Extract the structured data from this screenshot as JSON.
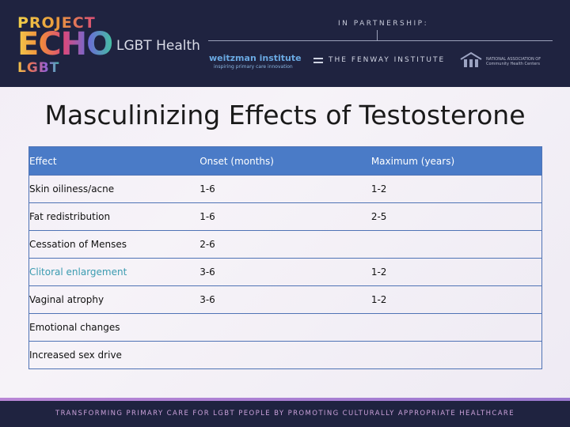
{
  "header": {
    "logo_project": "PROJECT",
    "logo_echo": "ECHO",
    "logo_lgbt": "LGBT",
    "logo_health": "LGBT Health",
    "partnership": "IN PARTNERSHIP:",
    "weitzman": "weitzman institute",
    "weitzman_tagline": "inspiring primary care innovation",
    "fenway": "THE FENWAY INSTITUTE",
    "nachc": "NATIONAL ASSOCIATION OF Community Health Centers"
  },
  "title": "Masculinizing Effects of Testosterone",
  "table": {
    "headers": [
      "Effect",
      "Onset (months)",
      "Maximum (years)"
    ],
    "rows": [
      [
        "Skin oiliness/acne",
        "1-6",
        "1-2"
      ],
      [
        "Fat redistribution",
        "1-6",
        "2-5"
      ],
      [
        "Cessation of Menses",
        "2-6",
        ""
      ],
      [
        "Clitoral enlargement",
        "3-6",
        "1-2"
      ],
      [
        "Vaginal atrophy",
        "3-6",
        "1-2"
      ],
      [
        "Emotional changes",
        "",
        ""
      ],
      [
        "Increased sex drive",
        "",
        ""
      ]
    ]
  },
  "footer": "TRANSFORMING PRIMARY CARE FOR LGBT PEOPLE BY PROMOTING CULTURALLY APPROPRIATE HEALTHCARE",
  "colors": {
    "header_bg": "#1f2340",
    "table_header": "#4a7bc7",
    "table_border": "#4f73b5",
    "highlight_text": "#3a9bb0"
  }
}
